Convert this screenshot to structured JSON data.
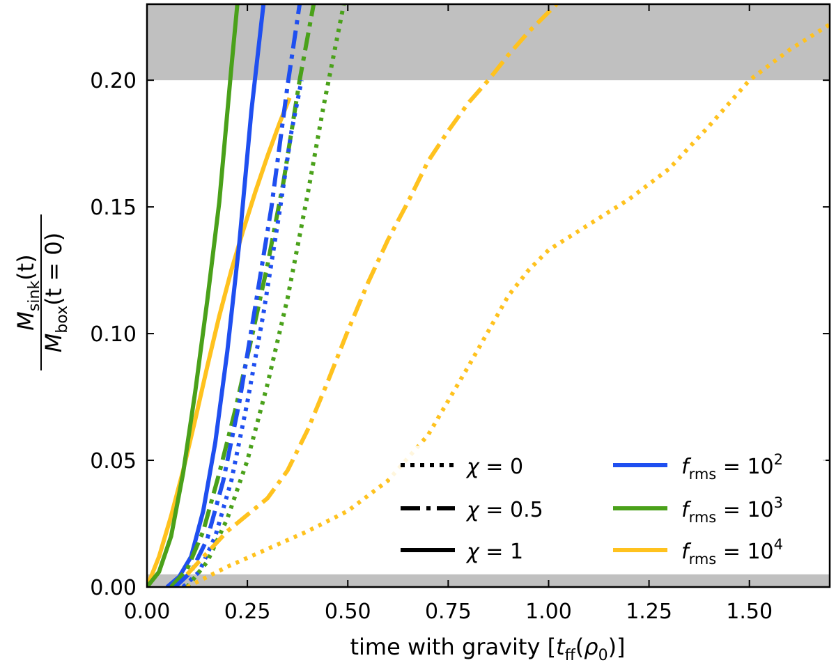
{
  "chart_data": {
    "type": "line",
    "title": "",
    "xlabel": "time with gravity [t_ff(ρ_0)]",
    "xlabel_parts": {
      "main": "time with gravity [",
      "t": "t",
      "t_sub": "ff",
      "open": "(",
      "rho": "ρ",
      "rho_sub": "0",
      "close": ")]"
    },
    "ylabel_parts": {
      "num_M": "M",
      "num_sub": "sink",
      "num_tail": "(t)",
      "den_M": "M",
      "den_sub": "box",
      "den_tail": "(t = 0)"
    },
    "xlim": [
      0.0,
      1.7
    ],
    "ylim": [
      0.0,
      0.23
    ],
    "xticks": [
      0.0,
      0.25,
      0.5,
      0.75,
      1.0,
      1.25,
      1.5
    ],
    "xtick_labels": [
      "0.00",
      "0.25",
      "0.50",
      "0.75",
      "1.00",
      "1.25",
      "1.50"
    ],
    "yticks": [
      0.0,
      0.05,
      0.1,
      0.15,
      0.2
    ],
    "ytick_labels": [
      "0.00",
      "0.05",
      "0.10",
      "0.15",
      "0.20"
    ],
    "shaded_bands": [
      {
        "y0": 0.2,
        "y1": 0.23,
        "color": "#c0c0c0"
      },
      {
        "y0": 0.0,
        "y1": 0.005,
        "color": "#c0c0c0"
      }
    ],
    "colors": {
      "f1e2": "#1f4ff0",
      "f1e3": "#4aa11a",
      "f1e4": "#ffc21e"
    },
    "legend": {
      "placement": "lower-right",
      "styles": [
        {
          "label": "χ = 0",
          "chi": "0",
          "style": "dotted"
        },
        {
          "label": "χ = 0.5",
          "chi": "0.5",
          "style": "dashdot"
        },
        {
          "label": "χ = 1",
          "chi": "1",
          "style": "solid"
        }
      ],
      "colors": [
        {
          "label": "f_rms = 10^2",
          "exp": "2",
          "color": "#1f4ff0"
        },
        {
          "label": "f_rms = 10^3",
          "exp": "3",
          "color": "#4aa11a"
        },
        {
          "label": "f_rms = 10^4",
          "exp": "4",
          "color": "#ffc21e"
        }
      ],
      "f_main": "f",
      "f_sub": "rms",
      "eq": " = 10"
    },
    "series": [
      {
        "name": "f_rms=10^4, χ=1",
        "color": "#ffc21e",
        "style": "solid",
        "x": [
          0.0,
          0.03,
          0.06,
          0.09,
          0.12,
          0.15,
          0.18,
          0.21,
          0.24,
          0.27,
          0.3,
          0.33,
          0.355
        ],
        "y": [
          0.0,
          0.012,
          0.028,
          0.046,
          0.066,
          0.087,
          0.107,
          0.125,
          0.141,
          0.156,
          0.17,
          0.183,
          0.193
        ]
      },
      {
        "name": "f_rms=10^3, χ=1",
        "color": "#4aa11a",
        "style": "solid",
        "x": [
          0.0,
          0.03,
          0.06,
          0.09,
          0.12,
          0.15,
          0.18,
          0.21,
          0.225
        ],
        "y": [
          0.0,
          0.006,
          0.02,
          0.045,
          0.077,
          0.113,
          0.152,
          0.205,
          0.23
        ]
      },
      {
        "name": "f_rms=10^2, χ=1",
        "color": "#1f4ff0",
        "style": "solid",
        "x": [
          0.05,
          0.08,
          0.11,
          0.14,
          0.17,
          0.2,
          0.23,
          0.26,
          0.29
        ],
        "y": [
          0.0,
          0.004,
          0.012,
          0.03,
          0.057,
          0.093,
          0.136,
          0.188,
          0.23
        ]
      },
      {
        "name": "f_rms=10^3, χ=0.5",
        "color": "#4aa11a",
        "style": "dashdot",
        "x": [
          0.06,
          0.1,
          0.14,
          0.18,
          0.22,
          0.26,
          0.3,
          0.34,
          0.38,
          0.415
        ],
        "y": [
          0.0,
          0.007,
          0.022,
          0.045,
          0.07,
          0.098,
          0.127,
          0.16,
          0.2,
          0.23
        ]
      },
      {
        "name": "f_rms=10^2, χ=0.5",
        "color": "#1f4ff0",
        "style": "dashdot",
        "x": [
          0.07,
          0.11,
          0.15,
          0.19,
          0.23,
          0.27,
          0.31,
          0.35,
          0.38
        ],
        "y": [
          0.0,
          0.006,
          0.019,
          0.042,
          0.073,
          0.111,
          0.15,
          0.198,
          0.23
        ]
      },
      {
        "name": "f_rms=10^2, χ=0",
        "color": "#1f4ff0",
        "style": "dotted",
        "x": [
          0.09,
          0.13,
          0.17,
          0.21,
          0.25,
          0.29,
          0.33,
          0.36,
          0.385
        ],
        "y": [
          0.0,
          0.006,
          0.02,
          0.042,
          0.073,
          0.108,
          0.148,
          0.18,
          0.2
        ]
      },
      {
        "name": "f_rms=10^3, χ=0",
        "color": "#4aa11a",
        "style": "dotted",
        "x": [
          0.1,
          0.15,
          0.2,
          0.25,
          0.3,
          0.35,
          0.4,
          0.44,
          0.49
        ],
        "y": [
          0.0,
          0.01,
          0.027,
          0.05,
          0.08,
          0.114,
          0.155,
          0.19,
          0.23
        ]
      },
      {
        "name": "f_rms=10^4, χ=0.5",
        "color": "#ffc21e",
        "style": "dashdot",
        "x": [
          0.1,
          0.2,
          0.3,
          0.35,
          0.4,
          0.45,
          0.5,
          0.55,
          0.6,
          0.65,
          0.7,
          0.75,
          0.8,
          0.85,
          0.9,
          0.95,
          1.02
        ],
        "y": [
          0.005,
          0.022,
          0.035,
          0.046,
          0.062,
          0.081,
          0.101,
          0.12,
          0.137,
          0.152,
          0.168,
          0.18,
          0.191,
          0.2,
          0.21,
          0.219,
          0.23
        ]
      },
      {
        "name": "f_rms=10^4, χ=0",
        "color": "#ffc21e",
        "style": "dotted",
        "x": [
          0.1,
          0.2,
          0.3,
          0.4,
          0.5,
          0.6,
          0.7,
          0.8,
          0.9,
          0.95,
          1.0,
          1.1,
          1.2,
          1.3,
          1.4,
          1.5,
          1.6,
          1.7
        ],
        "y": [
          0.0,
          0.008,
          0.015,
          0.022,
          0.03,
          0.042,
          0.06,
          0.087,
          0.115,
          0.125,
          0.133,
          0.143,
          0.153,
          0.165,
          0.182,
          0.2,
          0.212,
          0.222
        ]
      }
    ]
  }
}
